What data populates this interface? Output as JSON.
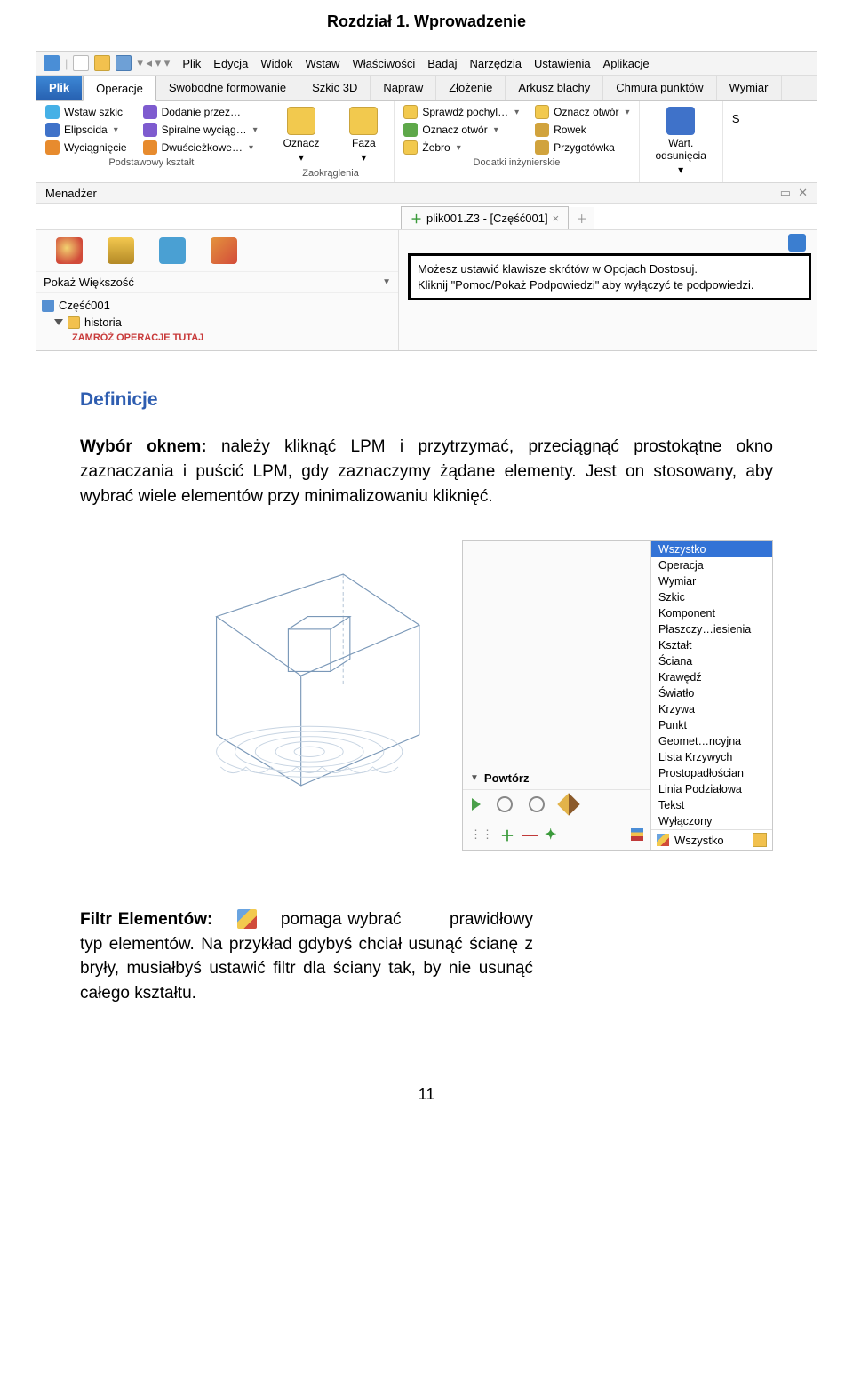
{
  "page_header": "Rozdział 1. Wprowadzenie",
  "menubar": {
    "items": [
      "Plik",
      "Edycja",
      "Widok",
      "Wstaw",
      "Właściwości",
      "Badaj",
      "Narzędzia",
      "Ustawienia",
      "Aplikacje"
    ]
  },
  "ribbon_tabs": [
    "Plik",
    "Operacje",
    "Swobodne formowanie",
    "Szkic 3D",
    "Napraw",
    "Złożenie",
    "Arkusz blachy",
    "Chmura punktów",
    "Wymiar"
  ],
  "ribbon": {
    "g1": {
      "items": [
        {
          "label": "Wstaw szkic",
          "cls": "sky"
        },
        {
          "label": "Elipsoida",
          "cls": "blu",
          "dd": true
        },
        {
          "label": "Wyciągnięcie",
          "cls": "org"
        }
      ],
      "items2": [
        {
          "label": "Dodanie przez…",
          "cls": "prp"
        },
        {
          "label": "Spiralne wyciąg…",
          "cls": "prp",
          "dd": true
        },
        {
          "label": "Dwuścieżkowe…",
          "cls": "org",
          "dd": true
        }
      ],
      "label": "Podstawowy kształt"
    },
    "g2": {
      "big": [
        {
          "label": "Oznacz",
          "cls": "yel"
        },
        {
          "label": "Faza",
          "cls": "yel"
        }
      ],
      "label": "Zaokrąglenia"
    },
    "g3": {
      "items": [
        {
          "label": "Sprawdź pochyl…",
          "cls": "yel",
          "dd": true
        },
        {
          "label": "Oznacz otwór",
          "cls": "grn",
          "dd": true
        },
        {
          "label": "Żebro",
          "cls": "yel",
          "dd": true
        }
      ],
      "items2": [
        {
          "label": "Oznacz otwór",
          "cls": "yel",
          "dd": true
        },
        {
          "label": "Rowek",
          "cls": "gld"
        },
        {
          "label": "Przygotówka",
          "cls": "gld"
        }
      ],
      "label": "Dodatki inżynierskie"
    },
    "g4": {
      "big": [
        {
          "label": "Wart.\nodsunięcia",
          "cls": "blu"
        }
      ],
      "label": ""
    },
    "g5": {
      "s": "S"
    }
  },
  "manager_label": "Menadżer",
  "doc_tab": "plik001.Z3 - [Część001]",
  "drop_label": "Pokaż Większość",
  "tree": {
    "root": "Część001",
    "child": "historia",
    "op": "ZAMRÓŻ OPERACJE TUTAJ"
  },
  "hint": {
    "l1": "Możesz ustawić klawisze skrótów w Opcjach Dostosuj.",
    "l2": "Kliknij \"Pomoc/Pokaż Podpowiedzi\" aby wyłączyć te podpowiedzi."
  },
  "defs": {
    "title": "Definicje",
    "p1_lead": "Wybór oknem:",
    "p1_rest": " należy kliknąć LPM i przytrzymać, przeciągnąć prostokątne okno zaznaczania i puścić LPM, gdy zaznaczymy żądane elementy. Jest on stosowany, aby wybrać wiele elementów przy minimalizowaniu kliknięć."
  },
  "filter": {
    "repeat": "Powtórz",
    "all": "Wszystko",
    "opts": [
      "Wszystko",
      "Operacja",
      "Wymiar",
      "Szkic",
      "Komponent",
      "Płaszczy…iesienia",
      "Kształt",
      "Ściana",
      "Krawędź",
      "Światło",
      "Krzywa",
      "Punkt",
      "Geomet…ncyjna",
      "Lista Krzywych",
      "Prostopadłościan",
      "Linia Podziałowa",
      "Tekst",
      "Wyłączony"
    ],
    "bottom": "Wszystko"
  },
  "filterdef": {
    "lead": "Filtr Elementów:",
    "mid": "pomaga wybrać",
    "rest": "prawidłowy typ elementów. Na przykład gdybyś chciał usunąć ścianę z bryły, musiałbyś ustawić filtr dla ściany tak, by nie usunąć całego kształtu."
  },
  "pagenum": "11"
}
